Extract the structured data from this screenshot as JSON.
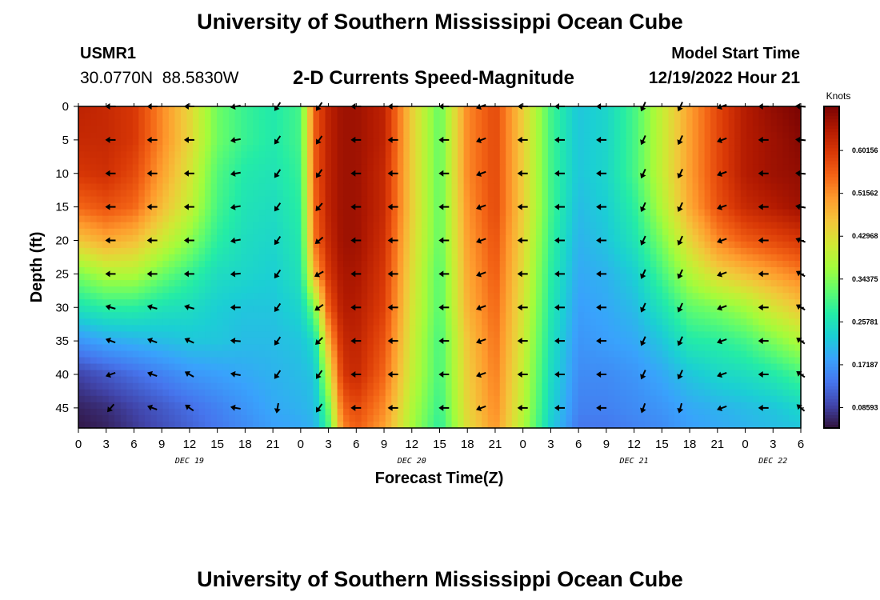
{
  "header": {
    "title": "University of Southern Mississippi Ocean Cube",
    "station": "USMR1",
    "coords": "30.0770N  88.5830W",
    "subtitle": "2-D Currents Speed-Magnitude",
    "start_label": "Model Start Time",
    "start_value": "12/19/2022 Hour 21"
  },
  "footer": {
    "title": "University of Southern Mississippi Ocean Cube"
  },
  "chart_data": {
    "type": "heatmap",
    "title": "2-D Currents Speed-Magnitude",
    "xlabel": "Forecast Time(Z)",
    "ylabel": "Depth (ft)",
    "x_hours_range": [
      0,
      78
    ],
    "x_tick_labels": [
      "0",
      "3",
      "6",
      "9",
      "12",
      "15",
      "18",
      "21",
      "0",
      "3",
      "6",
      "9",
      "12",
      "15",
      "18",
      "21",
      "0",
      "3",
      "6",
      "9",
      "12",
      "15",
      "18",
      "21",
      "0",
      "3",
      "6"
    ],
    "day_labels": [
      {
        "label": "DEC 19",
        "hour": 12
      },
      {
        "label": "DEC 20",
        "hour": 36
      },
      {
        "label": "DEC 21",
        "hour": 60
      },
      {
        "label": "DEC 22",
        "hour": 75
      }
    ],
    "y_range": [
      0,
      48
    ],
    "y_ticks": [
      0,
      5,
      10,
      15,
      20,
      25,
      30,
      35,
      40,
      45
    ],
    "colorbar": {
      "unit": "Knots",
      "range": [
        0.045,
        0.69
      ],
      "tick_values": [
        0.60156,
        0.51562,
        0.42968,
        0.34375,
        0.25781,
        0.17187,
        0.08593
      ],
      "tick_labels": [
        "0.60156",
        "0.51562",
        "0.42968",
        "0.34375",
        "0.25781",
        "0.17187",
        "0.08593"
      ],
      "colors": [
        "#30123b",
        "#4145ab",
        "#4675ed",
        "#39a2fc",
        "#1bcfd4",
        "#24eca6",
        "#61fc6c",
        "#a4fc3b",
        "#d1e834",
        "#f3c63a",
        "#fe9b2d",
        "#f36315",
        "#d93806",
        "#b11901",
        "#7a0403"
      ]
    },
    "speed_grid": {
      "hours": [
        0,
        3,
        6,
        9,
        12,
        15,
        18,
        21,
        24,
        25.5,
        27,
        28.5,
        30,
        33,
        36,
        39,
        42,
        45,
        48,
        51,
        54,
        57,
        60,
        63,
        66,
        69,
        72,
        75,
        78
      ],
      "depths": [
        0,
        5,
        10,
        15,
        20,
        25,
        30,
        35,
        40,
        45,
        48
      ],
      "rows": [
        [
          0.63,
          0.62,
          0.6,
          0.52,
          0.44,
          0.33,
          0.29,
          0.27,
          0.3,
          0.56,
          0.63,
          0.66,
          0.66,
          0.63,
          0.45,
          0.32,
          0.52,
          0.58,
          0.45,
          0.3,
          0.22,
          0.24,
          0.3,
          0.4,
          0.5,
          0.58,
          0.64,
          0.67,
          0.69
        ],
        [
          0.62,
          0.62,
          0.6,
          0.52,
          0.44,
          0.33,
          0.29,
          0.27,
          0.3,
          0.56,
          0.63,
          0.66,
          0.66,
          0.63,
          0.45,
          0.32,
          0.52,
          0.58,
          0.45,
          0.3,
          0.22,
          0.24,
          0.3,
          0.4,
          0.5,
          0.58,
          0.64,
          0.66,
          0.68
        ],
        [
          0.6,
          0.61,
          0.58,
          0.5,
          0.42,
          0.31,
          0.27,
          0.26,
          0.29,
          0.56,
          0.63,
          0.66,
          0.66,
          0.62,
          0.45,
          0.32,
          0.52,
          0.58,
          0.45,
          0.3,
          0.22,
          0.24,
          0.3,
          0.4,
          0.5,
          0.58,
          0.64,
          0.66,
          0.67
        ],
        [
          0.55,
          0.57,
          0.55,
          0.47,
          0.4,
          0.3,
          0.26,
          0.25,
          0.28,
          0.55,
          0.63,
          0.66,
          0.66,
          0.62,
          0.45,
          0.32,
          0.51,
          0.58,
          0.45,
          0.3,
          0.21,
          0.23,
          0.28,
          0.38,
          0.49,
          0.57,
          0.62,
          0.64,
          0.66
        ],
        [
          0.46,
          0.49,
          0.47,
          0.41,
          0.35,
          0.28,
          0.25,
          0.24,
          0.27,
          0.54,
          0.62,
          0.66,
          0.66,
          0.61,
          0.44,
          0.32,
          0.5,
          0.57,
          0.44,
          0.29,
          0.2,
          0.22,
          0.26,
          0.34,
          0.44,
          0.52,
          0.56,
          0.58,
          0.6
        ],
        [
          0.34,
          0.38,
          0.38,
          0.33,
          0.29,
          0.25,
          0.24,
          0.23,
          0.26,
          0.48,
          0.6,
          0.65,
          0.65,
          0.6,
          0.43,
          0.31,
          0.49,
          0.56,
          0.43,
          0.28,
          0.19,
          0.2,
          0.23,
          0.3,
          0.38,
          0.44,
          0.47,
          0.5,
          0.53
        ],
        [
          0.26,
          0.28,
          0.28,
          0.26,
          0.25,
          0.23,
          0.22,
          0.22,
          0.24,
          0.34,
          0.56,
          0.64,
          0.64,
          0.59,
          0.42,
          0.31,
          0.48,
          0.55,
          0.42,
          0.27,
          0.18,
          0.19,
          0.21,
          0.26,
          0.32,
          0.34,
          0.37,
          0.42,
          0.46
        ],
        [
          0.17,
          0.19,
          0.2,
          0.21,
          0.22,
          0.22,
          0.21,
          0.21,
          0.22,
          0.25,
          0.48,
          0.62,
          0.63,
          0.57,
          0.41,
          0.3,
          0.46,
          0.54,
          0.41,
          0.26,
          0.17,
          0.18,
          0.19,
          0.22,
          0.27,
          0.28,
          0.3,
          0.34,
          0.38
        ],
        [
          0.09,
          0.11,
          0.13,
          0.15,
          0.17,
          0.18,
          0.19,
          0.2,
          0.21,
          0.22,
          0.4,
          0.6,
          0.62,
          0.55,
          0.4,
          0.3,
          0.45,
          0.53,
          0.4,
          0.25,
          0.16,
          0.16,
          0.17,
          0.19,
          0.22,
          0.24,
          0.25,
          0.27,
          0.3
        ],
        [
          0.06,
          0.07,
          0.09,
          0.11,
          0.13,
          0.15,
          0.17,
          0.19,
          0.2,
          0.21,
          0.33,
          0.55,
          0.58,
          0.52,
          0.38,
          0.29,
          0.44,
          0.52,
          0.39,
          0.24,
          0.15,
          0.15,
          0.16,
          0.17,
          0.19,
          0.2,
          0.21,
          0.22,
          0.24
        ],
        [
          0.05,
          0.06,
          0.08,
          0.1,
          0.12,
          0.14,
          0.16,
          0.18,
          0.19,
          0.2,
          0.3,
          0.52,
          0.56,
          0.5,
          0.37,
          0.28,
          0.43,
          0.51,
          0.38,
          0.23,
          0.14,
          0.14,
          0.15,
          0.16,
          0.18,
          0.19,
          0.2,
          0.21,
          0.22
        ]
      ]
    },
    "vectors": {
      "hours": [
        3.5,
        8,
        12,
        17,
        21.5,
        26,
        30,
        34,
        39.5,
        43.5,
        48,
        52,
        56.5,
        61,
        65,
        69.5,
        74,
        78
      ],
      "depths": [
        0,
        5,
        10,
        15,
        20,
        25,
        30,
        35,
        40,
        45
      ],
      "directions_deg": [
        [
          180,
          180,
          180,
          190,
          235,
          235,
          180,
          180,
          180,
          200,
          180,
          180,
          180,
          245,
          245,
          200,
          180,
          175
        ],
        [
          180,
          180,
          180,
          190,
          235,
          235,
          180,
          180,
          180,
          200,
          180,
          180,
          180,
          245,
          245,
          200,
          180,
          175
        ],
        [
          180,
          180,
          180,
          190,
          235,
          235,
          180,
          180,
          180,
          200,
          180,
          180,
          180,
          245,
          245,
          200,
          180,
          175
        ],
        [
          180,
          180,
          180,
          190,
          235,
          230,
          180,
          180,
          180,
          200,
          180,
          180,
          180,
          245,
          245,
          200,
          180,
          170
        ],
        [
          180,
          180,
          180,
          190,
          235,
          220,
          180,
          180,
          180,
          200,
          180,
          180,
          180,
          245,
          245,
          200,
          180,
          160
        ],
        [
          180,
          180,
          180,
          185,
          235,
          210,
          180,
          180,
          180,
          200,
          180,
          180,
          180,
          245,
          245,
          200,
          180,
          150
        ],
        [
          165,
          165,
          165,
          180,
          235,
          215,
          180,
          180,
          180,
          200,
          180,
          180,
          180,
          245,
          245,
          200,
          180,
          150
        ],
        [
          160,
          160,
          155,
          175,
          235,
          225,
          180,
          180,
          180,
          200,
          180,
          180,
          180,
          245,
          245,
          200,
          180,
          145
        ],
        [
          200,
          160,
          150,
          170,
          235,
          235,
          180,
          180,
          180,
          200,
          180,
          180,
          180,
          245,
          245,
          200,
          180,
          145
        ],
        [
          230,
          160,
          145,
          170,
          260,
          235,
          180,
          180,
          180,
          200,
          180,
          180,
          180,
          250,
          255,
          200,
          180,
          140
        ]
      ]
    }
  }
}
